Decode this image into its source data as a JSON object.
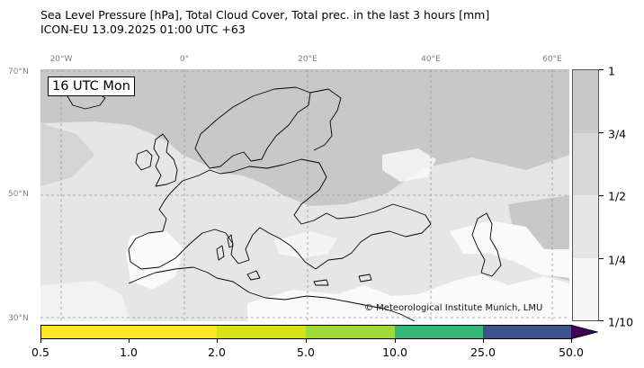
{
  "header": {
    "title_line1": "Sea Level Pressure [hPa], Total Cloud Cover, Total prec. in the last 3 hours [mm]",
    "title_line2": "ICON-EU 13.09.2025 01:00 UTC +63"
  },
  "map": {
    "time_label": "16 UTC Mon",
    "copyright": "© Meteorological Institute Munich, LMU",
    "lon_ticks": [
      "20°W",
      "0°",
      "20°E",
      "40°E",
      "60°E"
    ],
    "lat_ticks": [
      "70°N",
      "50°N",
      "30°N"
    ],
    "colors": {
      "ocean_cloud": "#e6e6e6",
      "clear_land": "#fafafa",
      "heavy_cloud": "#c8c8c8",
      "coastline": "#000000",
      "grid": "#999999"
    }
  },
  "cloud_colorbar": {
    "tick_labels": [
      "1",
      "3/4",
      "1/2",
      "1/4",
      "1/10"
    ],
    "band_colors": [
      "#c8c8c8",
      "#d7d7d7",
      "#e6e6e6",
      "#f5f5f5"
    ]
  },
  "precip_colorbar": {
    "tick_labels": [
      "0.5",
      "1.0",
      "2.0",
      "5.0",
      "10.0",
      "25.0",
      "50.0"
    ],
    "band_colors": [
      "#fde725",
      "#d8e219",
      "#c0dd2c",
      "#a0da39",
      "#35b779",
      "#3b528b",
      "#440154"
    ]
  }
}
